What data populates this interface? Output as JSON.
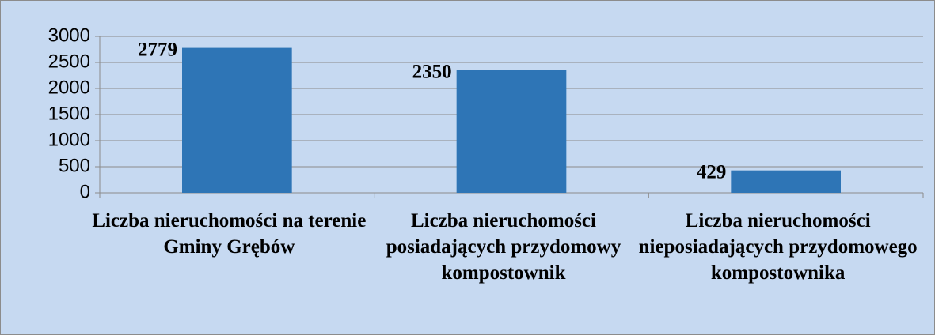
{
  "chart_data": {
    "type": "bar",
    "categories": [
      "Liczba nieruchomości na terenie Gminy Grębów",
      "Liczba nieruchomości posiadających przydomowy kompostownik",
      "Liczba nieruchomości nieposiadających przydomowego kompostownika"
    ],
    "values": [
      2779,
      2350,
      429
    ],
    "color": "#2e75b6",
    "ylim": [
      0,
      3000
    ],
    "yticks": [
      0,
      500,
      1000,
      1500,
      2000,
      2500,
      3000
    ],
    "grid": true
  }
}
